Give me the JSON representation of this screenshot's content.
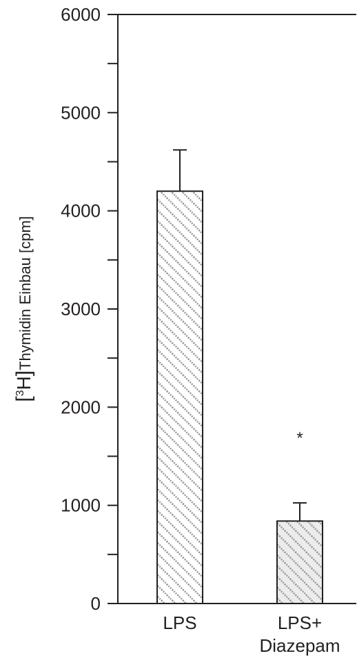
{
  "chart_data": {
    "type": "bar",
    "categories": [
      "LPS",
      "LPS+ Diazepam"
    ],
    "category_lines": [
      [
        "LPS"
      ],
      [
        "LPS+",
        "Diazepam"
      ]
    ],
    "values": [
      4200,
      840
    ],
    "errors": [
      420,
      185
    ],
    "significance_markers": [
      "",
      "*"
    ],
    "ylabel": {
      "bracket_open": "[",
      "superscript": "3",
      "isotope": "H",
      "bracket_close": "]",
      "rest": "Thymidin Einbau [cpm]"
    },
    "ylim": [
      0,
      6000
    ],
    "yticks_major": [
      0,
      1000,
      2000,
      3000,
      4000,
      5000,
      6000
    ],
    "yticks_minor_step": 500,
    "grid": false,
    "legend": "none",
    "bar_fill": "hatched",
    "bar_colors": [
      "#ffffff",
      "#ececec"
    ],
    "hatch_color": "#9a9a9a",
    "line_color": "#231f20"
  }
}
